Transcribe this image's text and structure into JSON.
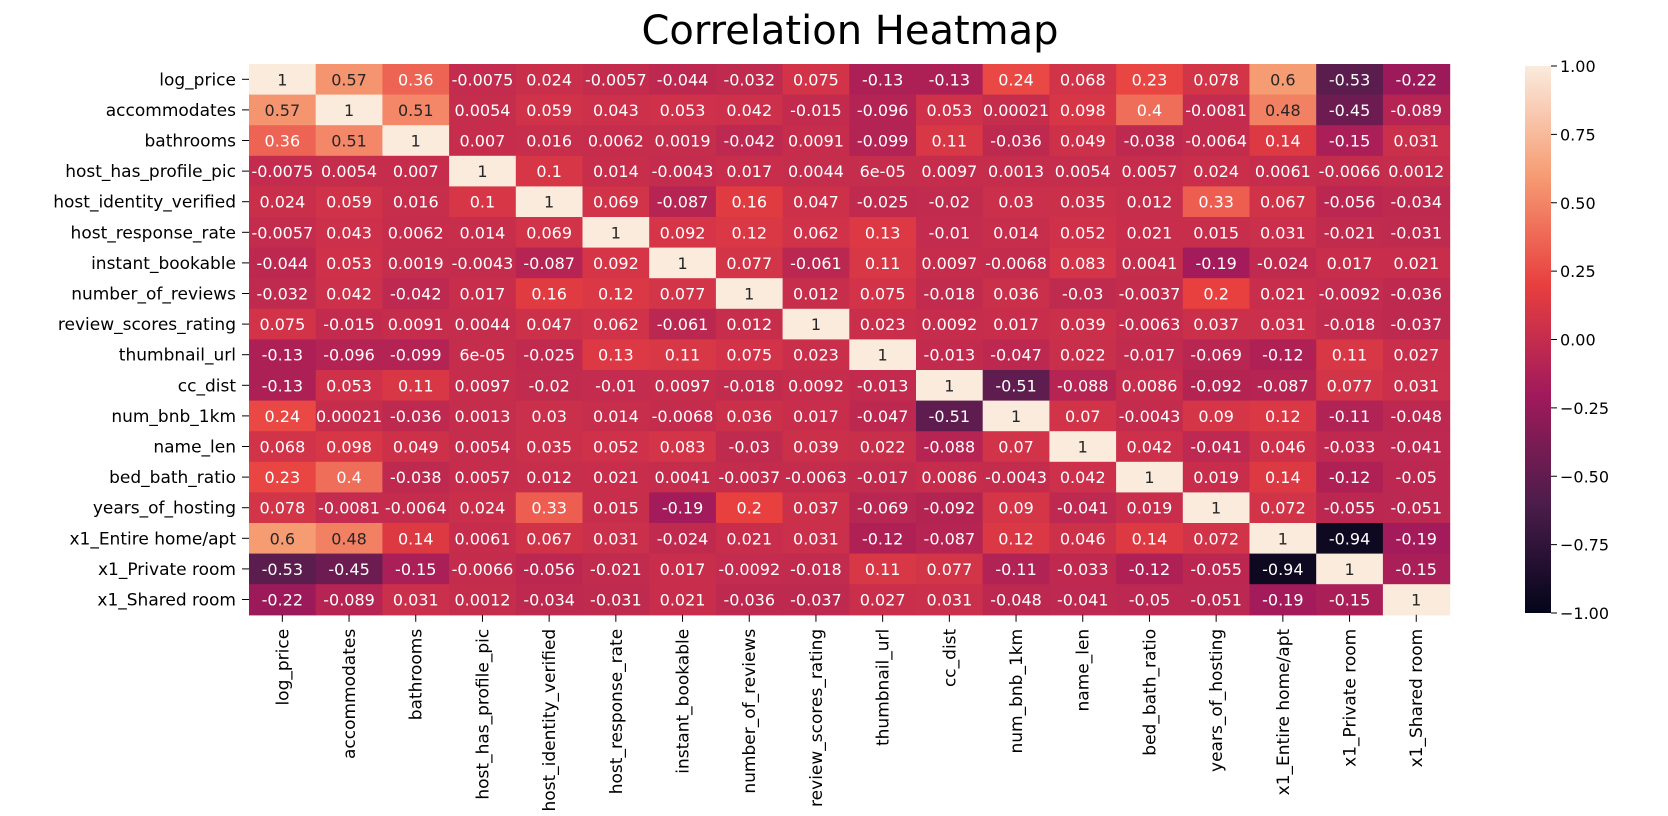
{
  "chart_data": {
    "type": "heatmap",
    "title": "Correlation Heatmap",
    "labels": [
      "log_price",
      "accommodates",
      "bathrooms",
      "host_has_profile_pic",
      "host_identity_verified",
      "host_response_rate",
      "instant_bookable",
      "number_of_reviews",
      "review_scores_rating",
      "thumbnail_url",
      "cc_dist",
      "num_bnb_1km",
      "name_len",
      "bed_bath_ratio",
      "years_of_hosting",
      "x1_Entire home/apt",
      "x1_Private room",
      "x1_Shared room"
    ],
    "annotations": [
      [
        "1",
        "0.57",
        "0.36",
        "-0.0075",
        "0.024",
        "-0.0057",
        "-0.044",
        "-0.032",
        "0.075",
        "-0.13",
        "-0.13",
        "0.24",
        "0.068",
        "0.23",
        "0.078",
        "0.6",
        "-0.53",
        "-0.22"
      ],
      [
        "0.57",
        "1",
        "0.51",
        "0.0054",
        "0.059",
        "0.043",
        "0.053",
        "0.042",
        "-0.015",
        "-0.096",
        "0.053",
        "0.00021",
        "0.098",
        "0.4",
        "-0.0081",
        "0.48",
        "-0.45",
        "-0.089"
      ],
      [
        "0.36",
        "0.51",
        "1",
        "0.007",
        "0.016",
        "0.0062",
        "0.0019",
        "-0.042",
        "0.0091",
        "-0.099",
        "0.11",
        "-0.036",
        "0.049",
        "-0.038",
        "-0.0064",
        "0.14",
        "-0.15",
        "0.031"
      ],
      [
        "-0.0075",
        "0.0054",
        "0.007",
        "1",
        "0.1",
        "0.014",
        "-0.0043",
        "0.017",
        "0.0044",
        "6e-05",
        "0.0097",
        "0.0013",
        "0.0054",
        "0.0057",
        "0.024",
        "0.0061",
        "-0.0066",
        "0.0012"
      ],
      [
        "0.024",
        "0.059",
        "0.016",
        "0.1",
        "1",
        "0.069",
        "-0.087",
        "0.16",
        "0.047",
        "-0.025",
        "-0.02",
        "0.03",
        "0.035",
        "0.012",
        "0.33",
        "0.067",
        "-0.056",
        "-0.034"
      ],
      [
        "-0.0057",
        "0.043",
        "0.0062",
        "0.014",
        "0.069",
        "1",
        "0.092",
        "0.12",
        "0.062",
        "0.13",
        "-0.01",
        "0.014",
        "0.052",
        "0.021",
        "0.015",
        "0.031",
        "-0.021",
        "-0.031"
      ],
      [
        "-0.044",
        "0.053",
        "0.0019",
        "-0.0043",
        "-0.087",
        "0.092",
        "1",
        "0.077",
        "-0.061",
        "0.11",
        "0.0097",
        "-0.0068",
        "0.083",
        "0.0041",
        "-0.19",
        "-0.024",
        "0.017",
        "0.021"
      ],
      [
        "-0.032",
        "0.042",
        "-0.042",
        "0.017",
        "0.16",
        "0.12",
        "0.077",
        "1",
        "0.012",
        "0.075",
        "-0.018",
        "0.036",
        "-0.03",
        "-0.0037",
        "0.2",
        "0.021",
        "-0.0092",
        "-0.036"
      ],
      [
        "0.075",
        "-0.015",
        "0.0091",
        "0.0044",
        "0.047",
        "0.062",
        "-0.061",
        "0.012",
        "1",
        "0.023",
        "0.0092",
        "0.017",
        "0.039",
        "-0.0063",
        "0.037",
        "0.031",
        "-0.018",
        "-0.037"
      ],
      [
        "-0.13",
        "-0.096",
        "-0.099",
        "6e-05",
        "-0.025",
        "0.13",
        "0.11",
        "0.075",
        "0.023",
        "1",
        "-0.013",
        "-0.047",
        "0.022",
        "-0.017",
        "-0.069",
        "-0.12",
        "0.11",
        "0.027"
      ],
      [
        "-0.13",
        "0.053",
        "0.11",
        "0.0097",
        "-0.02",
        "-0.01",
        "0.0097",
        "-0.018",
        "0.0092",
        "-0.013",
        "1",
        "-0.51",
        "-0.088",
        "0.0086",
        "-0.092",
        "-0.087",
        "0.077",
        "0.031"
      ],
      [
        "0.24",
        "0.00021",
        "-0.036",
        "0.0013",
        "0.03",
        "0.014",
        "-0.0068",
        "0.036",
        "0.017",
        "-0.047",
        "-0.51",
        "1",
        "0.07",
        "-0.0043",
        "0.09",
        "0.12",
        "-0.11",
        "-0.048"
      ],
      [
        "0.068",
        "0.098",
        "0.049",
        "0.0054",
        "0.035",
        "0.052",
        "0.083",
        "-0.03",
        "0.039",
        "0.022",
        "-0.088",
        "0.07",
        "1",
        "0.042",
        "-0.041",
        "0.046",
        "-0.033",
        "-0.041"
      ],
      [
        "0.23",
        "0.4",
        "-0.038",
        "0.0057",
        "0.012",
        "0.021",
        "0.0041",
        "-0.0037",
        "-0.0063",
        "-0.017",
        "0.0086",
        "-0.0043",
        "0.042",
        "1",
        "0.019",
        "0.14",
        "-0.12",
        "-0.05"
      ],
      [
        "0.078",
        "-0.0081",
        "-0.0064",
        "0.024",
        "0.33",
        "0.015",
        "-0.19",
        "0.2",
        "0.037",
        "-0.069",
        "-0.092",
        "0.09",
        "-0.041",
        "0.019",
        "1",
        "0.072",
        "-0.055",
        "-0.051"
      ],
      [
        "0.6",
        "0.48",
        "0.14",
        "0.0061",
        "0.067",
        "0.031",
        "-0.024",
        "0.021",
        "0.031",
        "-0.12",
        "-0.087",
        "0.12",
        "0.046",
        "0.14",
        "0.072",
        "1",
        "-0.94",
        "-0.19"
      ],
      [
        "-0.53",
        "-0.45",
        "-0.15",
        "-0.0066",
        "-0.056",
        "-0.021",
        "0.017",
        "-0.0092",
        "-0.018",
        "0.11",
        "0.077",
        "-0.11",
        "-0.033",
        "-0.12",
        "-0.055",
        "-0.94",
        "1",
        "-0.15"
      ],
      [
        "-0.22",
        "-0.089",
        "0.031",
        "0.0012",
        "-0.034",
        "-0.031",
        "0.021",
        "-0.036",
        "-0.037",
        "0.027",
        "0.031",
        "-0.048",
        "-0.041",
        "-0.05",
        "-0.051",
        "-0.19",
        "-0.15",
        "1"
      ]
    ],
    "vmin": -1.0,
    "vmax": 1.0,
    "colorbar_ticks": [
      "1.00",
      "0.75",
      "0.50",
      "0.25",
      "0.00",
      "−0.25",
      "−0.50",
      "−0.75",
      "−1.00"
    ],
    "colormap": [
      "#03051a",
      "#4c1d4b",
      "#a11a5b",
      "#e83f3f",
      "#f69c73",
      "#faebdd"
    ]
  }
}
